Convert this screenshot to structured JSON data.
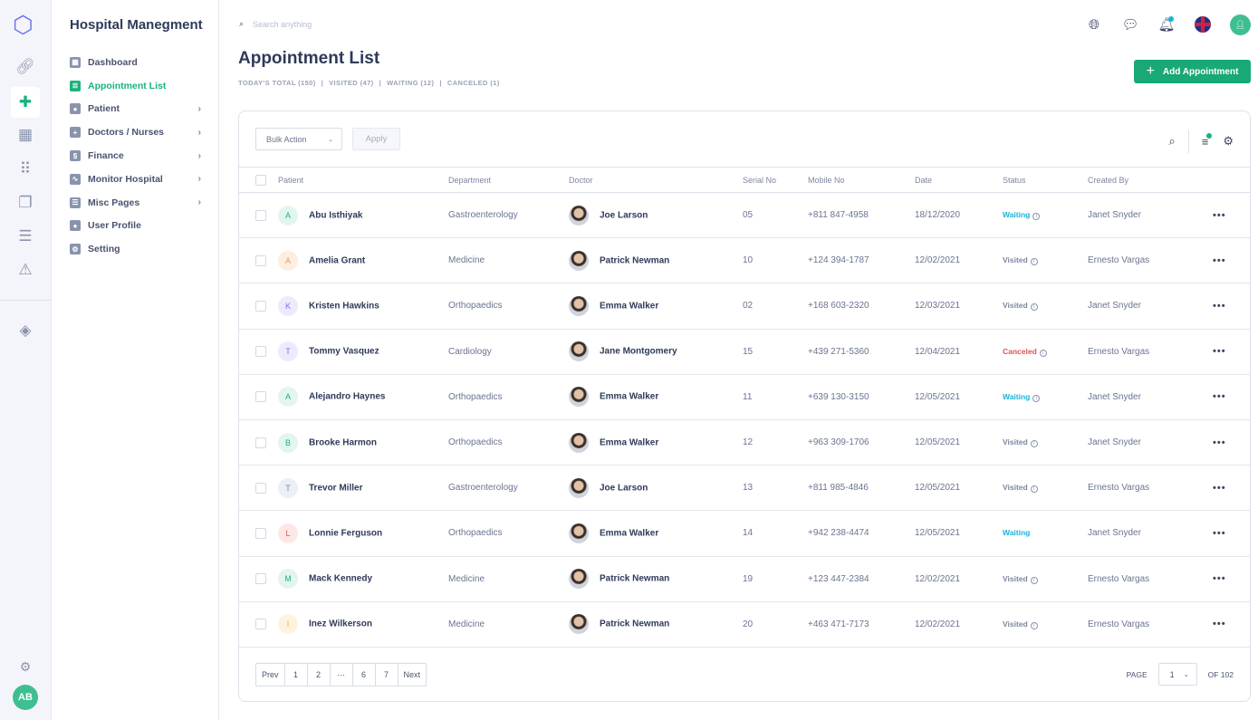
{
  "app": {
    "title": "Hospital Manegment"
  },
  "rail": {
    "user_initials": "AB"
  },
  "sidebar": {
    "items": [
      {
        "label": "Dashboard",
        "icon": "dashboard-icon",
        "active": false,
        "submenu": false
      },
      {
        "label": "Appointment List",
        "icon": "clipboard-icon",
        "active": true,
        "submenu": false
      },
      {
        "label": "Patient",
        "icon": "users-icon",
        "active": false,
        "submenu": true
      },
      {
        "label": "Doctors / Nurses",
        "icon": "plus-icon",
        "active": false,
        "submenu": true
      },
      {
        "label": "Finance",
        "icon": "dollar-icon",
        "active": false,
        "submenu": true
      },
      {
        "label": "Monitor Hospital",
        "icon": "pulse-icon",
        "active": false,
        "submenu": true
      },
      {
        "label": "Misc Pages",
        "icon": "server-icon",
        "active": false,
        "submenu": true
      },
      {
        "label": "User Profile",
        "icon": "user-icon",
        "active": false,
        "submenu": false
      },
      {
        "label": "Setting",
        "icon": "gear-icon",
        "active": false,
        "submenu": false
      }
    ]
  },
  "search": {
    "placeholder": "Search anything"
  },
  "page": {
    "title": "Appointment List",
    "stats": [
      "TODAY'S TOTAL (150)",
      "VISITED (47)",
      "WAITING (12)",
      "CANCELED (1)"
    ],
    "add_label": "Add Appointment"
  },
  "toolbar": {
    "bulk_label": "Bulk Action",
    "apply_label": "Apply"
  },
  "columns": [
    "Patient",
    "Department",
    "Doctor",
    "Serial No",
    "Mobile No",
    "Date",
    "Status",
    "Created By"
  ],
  "rows": [
    {
      "initial": "A",
      "patient": "Abu Isthiyak",
      "department": "Gastroenterology",
      "doctor": "Joe Larson",
      "serial": "05",
      "mobile": "+811 847-4958",
      "date": "18/12/2020",
      "status": "Waiting",
      "created_by": "Janet Snyder"
    },
    {
      "initial": "A",
      "patient": "Amelia Grant",
      "department": "Medicine",
      "doctor": "Patrick Newman",
      "serial": "10",
      "mobile": "+124 394-1787",
      "date": "12/02/2021",
      "status": "Visited",
      "created_by": "Ernesto Vargas"
    },
    {
      "initial": "K",
      "patient": "Kristen Hawkins",
      "department": "Orthopaedics",
      "doctor": "Emma Walker",
      "serial": "02",
      "mobile": "+168 603-2320",
      "date": "12/03/2021",
      "status": "Visited",
      "created_by": "Janet Snyder"
    },
    {
      "initial": "T",
      "patient": "Tommy Vasquez",
      "department": "Cardiology",
      "doctor": "Jane Montgomery",
      "serial": "15",
      "mobile": "+439 271-5360",
      "date": "12/04/2021",
      "status": "Canceled",
      "created_by": "Ernesto Vargas"
    },
    {
      "initial": "A",
      "patient": "Alejandro Haynes",
      "department": "Orthopaedics",
      "doctor": "Emma Walker",
      "serial": "11",
      "mobile": "+639 130-3150",
      "date": "12/05/2021",
      "status": "Waiting",
      "created_by": "Janet Snyder"
    },
    {
      "initial": "B",
      "patient": "Brooke Harmon",
      "department": "Orthopaedics",
      "doctor": "Emma Walker",
      "serial": "12",
      "mobile": "+963 309-1706",
      "date": "12/05/2021",
      "status": "Visited",
      "created_by": "Janet Snyder"
    },
    {
      "initial": "T",
      "patient": "Trevor Miller",
      "department": "Gastroenterology",
      "doctor": "Joe Larson",
      "serial": "13",
      "mobile": "+811 985-4846",
      "date": "12/05/2021",
      "status": "Visited",
      "created_by": "Ernesto Vargas"
    },
    {
      "initial": "L",
      "patient": "Lonnie Ferguson",
      "department": "Orthopaedics",
      "doctor": "Emma Walker",
      "serial": "14",
      "mobile": "+942 238-4474",
      "date": "12/05/2021",
      "status": "Waiting",
      "created_by": "Janet Snyder"
    },
    {
      "initial": "M",
      "patient": "Mack Kennedy",
      "department": "Medicine",
      "doctor": "Patrick Newman",
      "serial": "19",
      "mobile": "+123 447-2384",
      "date": "12/02/2021",
      "status": "Visited",
      "created_by": "Ernesto Vargas"
    },
    {
      "initial": "I",
      "patient": "Inez Wilkerson",
      "department": "Medicine",
      "doctor": "Patrick Newman",
      "serial": "20",
      "mobile": "+463 471-7173",
      "date": "12/02/2021",
      "status": "Visited",
      "created_by": "Ernesto Vargas"
    }
  ],
  "avatar_colors": [
    [
      "#e3f6ee",
      "#19b37b"
    ],
    [
      "#fdeee2",
      "#f59a4b"
    ],
    [
      "#ecebfd",
      "#7b6ff0"
    ],
    [
      "#ecebfd",
      "#7b6ff0"
    ],
    [
      "#e3f6ee",
      "#19b37b"
    ],
    [
      "#e3f6ee",
      "#19b37b"
    ],
    [
      "#eceff5",
      "#7d86a0"
    ],
    [
      "#fde8e6",
      "#e5534b"
    ],
    [
      "#e3f6ee",
      "#19b37b"
    ],
    [
      "#fdf3df",
      "#f0b23c"
    ]
  ],
  "status_colors": {
    "Waiting": "#1ab2d8",
    "Visited": "#7d86a0",
    "Canceled": "#e5534b"
  },
  "pagination": {
    "pages": [
      "Prev",
      "1",
      "2",
      "···",
      "6",
      "7",
      "Next"
    ],
    "page_label": "PAGE",
    "current": "1",
    "of_label": "OF 102"
  },
  "colors": {
    "accent": "#19a974",
    "brand": "#6c72f0"
  }
}
